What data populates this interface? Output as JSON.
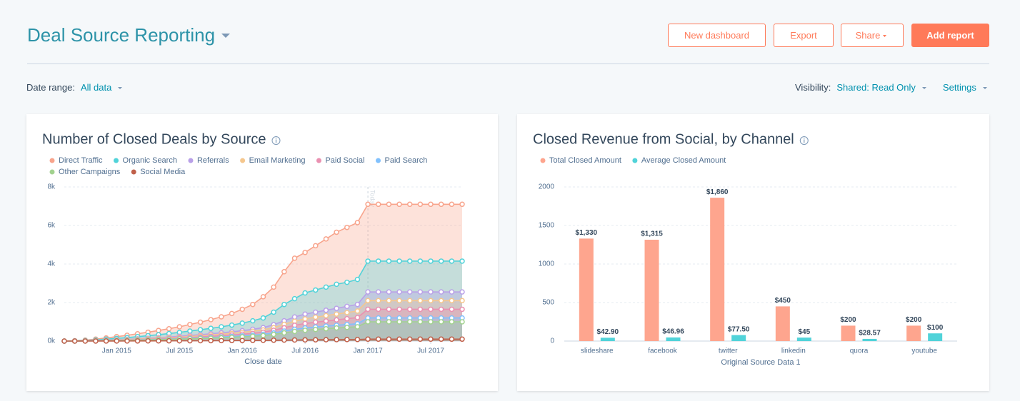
{
  "header": {
    "title": "Deal Source Reporting",
    "buttons": [
      "New dashboard",
      "Export",
      "Share",
      "Add report"
    ]
  },
  "filters": {
    "date_range_label": "Date range:",
    "date_range_value": "All data",
    "visibility_label": "Visibility:",
    "visibility_value": "Shared: Read Only",
    "settings": "Settings"
  },
  "chart_data": [
    {
      "type": "area",
      "title": "Number of Closed Deals by Source",
      "x_label": "Close date",
      "legend": "top",
      "grid": true,
      "x": [
        "2014-08",
        "2014-09",
        "2014-10",
        "2014-11",
        "2014-12",
        "2015-01",
        "2015-02",
        "2015-03",
        "2015-04",
        "2015-05",
        "2015-06",
        "2015-07",
        "2015-08",
        "2015-09",
        "2015-10",
        "2015-11",
        "2015-12",
        "2016-01",
        "2016-02",
        "2016-03",
        "2016-04",
        "2016-05",
        "2016-06",
        "2016-07",
        "2016-08",
        "2016-09",
        "2016-10",
        "2016-11",
        "2016-12",
        "2017-01",
        "2017-02",
        "2017-03",
        "2017-04",
        "2017-05",
        "2017-06",
        "2017-07",
        "2017-08",
        "2017-09",
        "2017-10"
      ],
      "xlim": [
        "2014-08",
        "2017-10"
      ],
      "xticks": [
        {
          "value": "2015-01",
          "label": "Jan 2015"
        },
        {
          "value": "2015-07",
          "label": "Jul 2015"
        },
        {
          "value": "2016-01",
          "label": "Jan 2016"
        },
        {
          "value": "2016-07",
          "label": "Jul 2016"
        },
        {
          "value": "2017-01",
          "label": "Jan 2017"
        },
        {
          "value": "2017-07",
          "label": "Jul 2017"
        }
      ],
      "ylim": [
        0,
        8000
      ],
      "yticks": [
        {
          "value": 0,
          "label": "0k"
        },
        {
          "value": 2000,
          "label": "2k"
        },
        {
          "value": 4000,
          "label": "4k"
        },
        {
          "value": 6000,
          "label": "6k"
        },
        {
          "value": 8000,
          "label": "8k"
        }
      ],
      "annotations": [
        {
          "x": "2017-01",
          "text": "Today"
        }
      ],
      "series": [
        {
          "name": "Direct Traffic",
          "color": "#f8a48c",
          "values": [
            0,
            20,
            50,
            100,
            160,
            230,
            300,
            380,
            460,
            550,
            640,
            740,
            860,
            980,
            1110,
            1260,
            1430,
            1650,
            1900,
            2300,
            2800,
            3600,
            4300,
            4600,
            4950,
            5300,
            5650,
            5900,
            6150,
            7100,
            7100,
            7100,
            7100,
            7100,
            7100,
            7100,
            7100,
            7100,
            7100
          ]
        },
        {
          "name": "Organic Search",
          "color": "#51d3d9",
          "values": [
            0,
            10,
            30,
            60,
            100,
            140,
            180,
            230,
            280,
            330,
            390,
            450,
            520,
            590,
            660,
            740,
            830,
            930,
            1050,
            1200,
            1500,
            1900,
            2200,
            2500,
            2650,
            2800,
            2950,
            3050,
            3200,
            4150,
            4150,
            4150,
            4150,
            4150,
            4150,
            4150,
            4150,
            4150,
            4150
          ]
        },
        {
          "name": "Referrals",
          "color": "#b9a0e8",
          "values": [
            0,
            5,
            15,
            30,
            50,
            70,
            95,
            120,
            150,
            180,
            210,
            250,
            290,
            330,
            380,
            430,
            480,
            540,
            610,
            700,
            850,
            1050,
            1250,
            1400,
            1500,
            1600,
            1700,
            1800,
            1900,
            2550,
            2550,
            2550,
            2550,
            2550,
            2550,
            2550,
            2550,
            2550,
            2550
          ]
        },
        {
          "name": "Email Marketing",
          "color": "#f5c78e",
          "values": [
            0,
            5,
            12,
            25,
            40,
            60,
            80,
            100,
            125,
            150,
            175,
            205,
            240,
            275,
            315,
            355,
            400,
            450,
            510,
            580,
            700,
            870,
            1030,
            1150,
            1240,
            1320,
            1400,
            1480,
            1560,
            2100,
            2100,
            2100,
            2100,
            2100,
            2100,
            2100,
            2100,
            2100,
            2100
          ]
        },
        {
          "name": "Paid Social",
          "color": "#ea90b1",
          "values": [
            0,
            4,
            10,
            20,
            32,
            45,
            60,
            78,
            95,
            115,
            135,
            160,
            185,
            215,
            245,
            280,
            315,
            355,
            400,
            460,
            560,
            690,
            820,
            910,
            980,
            1040,
            1100,
            1160,
            1220,
            1650,
            1650,
            1650,
            1650,
            1650,
            1650,
            1650,
            1650,
            1650,
            1650
          ]
        },
        {
          "name": "Paid Search",
          "color": "#81c1fd",
          "values": [
            0,
            3,
            8,
            15,
            25,
            35,
            45,
            58,
            72,
            87,
            102,
            120,
            140,
            160,
            185,
            210,
            240,
            270,
            305,
            350,
            420,
            520,
            610,
            680,
            730,
            780,
            820,
            860,
            900,
            1200,
            1200,
            1200,
            1200,
            1200,
            1200,
            1200,
            1200,
            1200,
            1200
          ]
        },
        {
          "name": "Other Campaigns",
          "color": "#a2d28f",
          "values": [
            0,
            2,
            6,
            12,
            20,
            28,
            37,
            48,
            60,
            72,
            85,
            100,
            115,
            132,
            150,
            170,
            195,
            220,
            250,
            285,
            345,
            425,
            500,
            560,
            600,
            640,
            680,
            710,
            740,
            1000,
            1000,
            1000,
            1000,
            1000,
            1000,
            1000,
            1000,
            1000,
            1000
          ]
        },
        {
          "name": "Social Media",
          "color": "#c0604a",
          "values": [
            0,
            0,
            1,
            2,
            3,
            4,
            5,
            6,
            8,
            10,
            12,
            14,
            16,
            18,
            20,
            23,
            26,
            30,
            34,
            38,
            44,
            50,
            56,
            62,
            66,
            70,
            74,
            78,
            82,
            100,
            100,
            100,
            100,
            100,
            100,
            100,
            100,
            100,
            100
          ]
        }
      ]
    },
    {
      "type": "bar",
      "title": "Closed Revenue from Social, by Channel",
      "x_label": "Original Source Data 1",
      "legend": "top",
      "grid": true,
      "categories": [
        "slideshare",
        "facebook",
        "twitter",
        "linkedin",
        "quora",
        "youtube"
      ],
      "ylim": [
        0,
        2000
      ],
      "yticks": [
        0,
        500,
        1000,
        1500,
        2000
      ],
      "series": [
        {
          "name": "Total Closed Amount",
          "color": "#fea58e",
          "values": [
            1330,
            1315,
            1860,
            450,
            200,
            200
          ],
          "value_labels": [
            "$1,330",
            "$1,315",
            "$1,860",
            "$450",
            "$200",
            "$200"
          ]
        },
        {
          "name": "Average Closed Amount",
          "color": "#51d3d9",
          "values": [
            42.9,
            46.96,
            77.5,
            45,
            28.57,
            100
          ],
          "value_labels": [
            "$42.90",
            "$46.96",
            "$77.50",
            "$45",
            "$28.57",
            "$100"
          ]
        }
      ]
    }
  ]
}
